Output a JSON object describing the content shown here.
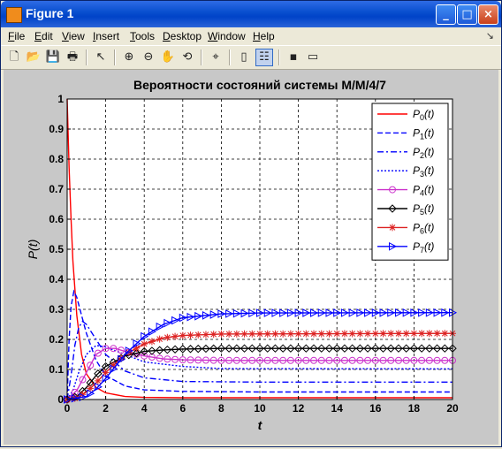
{
  "window": {
    "title": "Figure 1",
    "controls": [
      "_",
      "□",
      "×"
    ]
  },
  "menu": [
    {
      "label": "File",
      "key": "F",
      "rest": "ile"
    },
    {
      "label": "Edit",
      "key": "E",
      "rest": "dit"
    },
    {
      "label": "View",
      "key": "V",
      "rest": "iew"
    },
    {
      "label": "Insert",
      "key": "I",
      "rest": "nsert"
    },
    {
      "label": "Tools",
      "key": "T",
      "rest": "ools"
    },
    {
      "label": "Desktop",
      "key": "D",
      "rest": "esktop"
    },
    {
      "label": "Window",
      "key": "W",
      "rest": "indow"
    },
    {
      "label": "Help",
      "key": "H",
      "rest": "elp"
    }
  ],
  "toolbar_icons": [
    "new-file-icon",
    "open-folder-icon",
    "save-icon",
    "print-icon",
    "pointer-icon",
    "zoom-in-icon",
    "zoom-out-icon",
    "pan-hand-icon",
    "rotate-3d-icon",
    "data-cursor-icon",
    "colorbar-icon",
    "legend-icon",
    "hide-tools-icon",
    "show-tools-icon"
  ],
  "chart_data": {
    "type": "line",
    "title": "Вероятности состояний системы M/M/4/7",
    "xlabel": "t",
    "ylabel": "P(t)",
    "xlim": [
      0,
      20
    ],
    "ylim": [
      0,
      1
    ],
    "xticks": [
      0,
      2,
      4,
      6,
      8,
      10,
      12,
      14,
      16,
      18,
      20
    ],
    "yticks": [
      0,
      0.1,
      0.2,
      0.3,
      0.4,
      0.5,
      0.6,
      0.7,
      0.8,
      0.9,
      1
    ],
    "grid": true,
    "legend_position": "top-right",
    "series": [
      {
        "name": "P0(t)",
        "base": "P",
        "sub": "0",
        "arg": "(t)",
        "color": "#FF0000",
        "dash": "",
        "marker": "none",
        "points": [
          [
            0,
            1
          ],
          [
            0.1,
            0.77
          ],
          [
            0.2,
            0.6
          ],
          [
            0.3,
            0.46
          ],
          [
            0.5,
            0.28
          ],
          [
            0.75,
            0.15
          ],
          [
            1,
            0.085
          ],
          [
            1.5,
            0.04
          ],
          [
            2,
            0.022
          ],
          [
            3,
            0.01
          ],
          [
            4,
            0.007
          ],
          [
            6,
            0.006
          ],
          [
            10,
            0.006
          ],
          [
            20,
            0.006
          ]
        ]
      },
      {
        "name": "P1(t)",
        "base": "P",
        "sub": "1",
        "arg": "(t)",
        "color": "#0000FF",
        "dash": "6,3",
        "marker": "none",
        "points": [
          [
            0,
            0
          ],
          [
            0.1,
            0.2
          ],
          [
            0.2,
            0.31
          ],
          [
            0.35,
            0.36
          ],
          [
            0.5,
            0.34
          ],
          [
            0.75,
            0.28
          ],
          [
            1,
            0.22
          ],
          [
            1.5,
            0.13
          ],
          [
            2,
            0.08
          ],
          [
            3,
            0.045
          ],
          [
            4,
            0.032
          ],
          [
            6,
            0.027
          ],
          [
            10,
            0.025
          ],
          [
            20,
            0.025
          ]
        ]
      },
      {
        "name": "P2(t)",
        "base": "P",
        "sub": "2",
        "arg": "(t)",
        "color": "#0000FF",
        "dash": "7,3,2,3",
        "marker": "none",
        "points": [
          [
            0,
            0
          ],
          [
            0.2,
            0.08
          ],
          [
            0.4,
            0.18
          ],
          [
            0.6,
            0.24
          ],
          [
            0.8,
            0.26
          ],
          [
            1,
            0.25
          ],
          [
            1.5,
            0.2
          ],
          [
            2,
            0.15
          ],
          [
            3,
            0.095
          ],
          [
            4,
            0.072
          ],
          [
            6,
            0.06
          ],
          [
            10,
            0.058
          ],
          [
            20,
            0.058
          ]
        ]
      },
      {
        "name": "P3(t)",
        "base": "P",
        "sub": "3",
        "arg": "(t)",
        "color": "#0000FF",
        "dash": "2,2",
        "marker": "none",
        "points": [
          [
            0,
            0
          ],
          [
            0.3,
            0.03
          ],
          [
            0.6,
            0.09
          ],
          [
            1,
            0.15
          ],
          [
            1.5,
            0.18
          ],
          [
            2,
            0.175
          ],
          [
            3,
            0.15
          ],
          [
            4,
            0.125
          ],
          [
            6,
            0.11
          ],
          [
            8,
            0.103
          ],
          [
            20,
            0.102
          ]
        ]
      },
      {
        "name": "P4(t)",
        "base": "P",
        "sub": "4",
        "arg": "(t)",
        "color": "#CC33CC",
        "dash": "",
        "marker": "circle",
        "points": [
          [
            0,
            0
          ],
          [
            0.5,
            0.03
          ],
          [
            1,
            0.09
          ],
          [
            1.5,
            0.15
          ],
          [
            2,
            0.17
          ],
          [
            2.5,
            0.17
          ],
          [
            3,
            0.16
          ],
          [
            4,
            0.145
          ],
          [
            5,
            0.135
          ],
          [
            6,
            0.132
          ],
          [
            8,
            0.13
          ],
          [
            20,
            0.13
          ]
        ]
      },
      {
        "name": "P5(t)",
        "base": "P",
        "sub": "5",
        "arg": "(t)",
        "color": "#000000",
        "dash": "",
        "marker": "diamond",
        "points": [
          [
            0,
            0
          ],
          [
            0.5,
            0.01
          ],
          [
            1,
            0.04
          ],
          [
            1.5,
            0.08
          ],
          [
            2,
            0.11
          ],
          [
            3,
            0.145
          ],
          [
            4,
            0.16
          ],
          [
            5,
            0.165
          ],
          [
            6,
            0.168
          ],
          [
            8,
            0.17
          ],
          [
            20,
            0.17
          ]
        ]
      },
      {
        "name": "P6(t)",
        "base": "P",
        "sub": "6",
        "arg": "(t)",
        "color": "#DD2222",
        "dash": "",
        "marker": "star",
        "points": [
          [
            0,
            0
          ],
          [
            0.5,
            0.005
          ],
          [
            1,
            0.025
          ],
          [
            1.5,
            0.055
          ],
          [
            2,
            0.09
          ],
          [
            3,
            0.15
          ],
          [
            4,
            0.185
          ],
          [
            5,
            0.205
          ],
          [
            6,
            0.213
          ],
          [
            8,
            0.218
          ],
          [
            20,
            0.22
          ]
        ]
      },
      {
        "name": "P7(t)",
        "base": "P",
        "sub": "7",
        "arg": "(t)",
        "color": "#0000FF",
        "dash": "",
        "marker": "triangle",
        "points": [
          [
            0,
            0
          ],
          [
            1,
            0.01
          ],
          [
            1.5,
            0.035
          ],
          [
            2,
            0.07
          ],
          [
            3,
            0.15
          ],
          [
            4,
            0.21
          ],
          [
            5,
            0.25
          ],
          [
            6,
            0.272
          ],
          [
            8,
            0.285
          ],
          [
            10,
            0.288
          ],
          [
            20,
            0.289
          ]
        ]
      }
    ]
  }
}
